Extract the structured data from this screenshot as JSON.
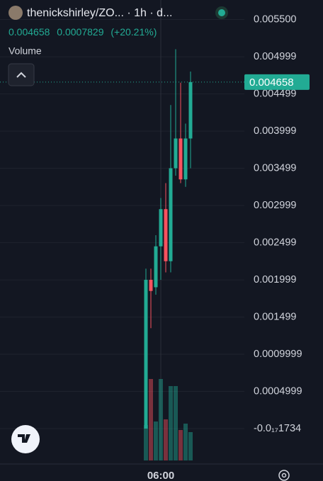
{
  "chart_data": {
    "type": "candlestick",
    "title": "thenickshirley/ZO... · 1h · d...",
    "last_price": 0.004658,
    "change": 0.0007829,
    "change_percent": {
      "value": 20.21,
      "label": "(+20.21%)"
    },
    "volume_label": "Volume",
    "categories": [
      null,
      null,
      null,
      "06:00",
      null,
      null,
      null,
      null,
      null,
      null
    ],
    "open": [
      0.0,
      0.002,
      0.0019,
      0.00245,
      0.00295,
      0.00225,
      0.0035,
      0.0039,
      0.00335,
      0.0039
    ],
    "high": [
      0.00215,
      0.00215,
      0.0026,
      0.0031,
      0.0033,
      0.00435,
      0.0051,
      0.00465,
      0.0041,
      0.0048
    ],
    "low": [
      0.0,
      0.00135,
      0.0018,
      0.002,
      0.0021,
      0.0021,
      0.0034,
      0.0033,
      0.00325,
      0.0035
    ],
    "close": [
      0.002,
      0.00185,
      0.00245,
      0.00295,
      0.00225,
      0.0035,
      0.0039,
      0.00335,
      0.0039,
      0.004658
    ],
    "volume": [
      50,
      115,
      55,
      115,
      58,
      105,
      105,
      43,
      52,
      40
    ],
    "volume_lim": [
      0,
      650
    ],
    "up_color": "#22ab94",
    "down_color": "#f7525f",
    "ylim": [
      -0.000429,
      0.005762
    ],
    "yticks": [
      {
        "value": -1.734e-18,
        "label": "-0.0₁₇1734"
      },
      0.0004999,
      0.0009999,
      0.001499,
      0.001999,
      0.002499,
      0.002999,
      0.003499,
      0.003999,
      0.004499,
      0.004999,
      {
        "value": 0.0055,
        "label": "0.005500"
      }
    ],
    "grid": true
  }
}
